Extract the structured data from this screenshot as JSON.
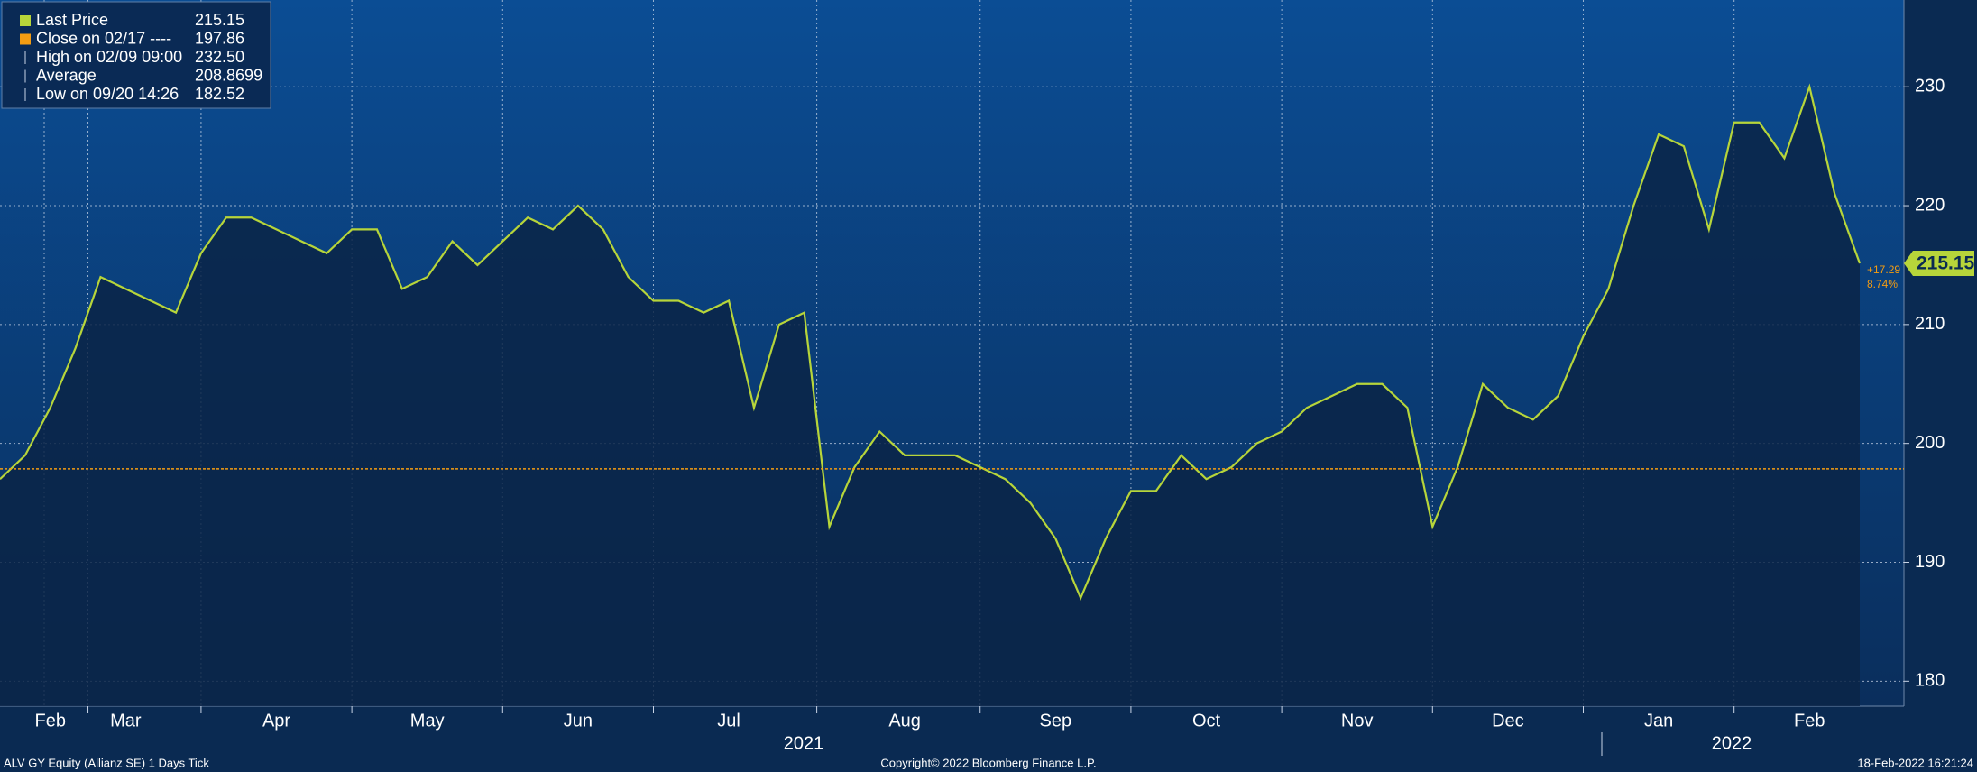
{
  "chart_data": {
    "type": "line",
    "categories": [
      null,
      null,
      "Feb",
      null,
      null,
      "Mar",
      null,
      null,
      null,
      null,
      null,
      "Apr",
      null,
      null,
      null,
      null,
      null,
      "May",
      null,
      null,
      null,
      null,
      null,
      "Jun",
      null,
      null,
      null,
      null,
      null,
      "Jul",
      null,
      null,
      null,
      null,
      null,
      null,
      "Aug",
      null,
      null,
      null,
      null,
      null,
      "Sep",
      null,
      null,
      null,
      null,
      null,
      "Oct",
      null,
      null,
      null,
      null,
      null,
      "Nov",
      null,
      null,
      null,
      null,
      null,
      "Dec",
      null,
      null,
      null,
      null,
      null,
      "Jan",
      null,
      null,
      null,
      null,
      null,
      "Feb",
      null,
      null
    ],
    "series": [
      {
        "name": "Last Price",
        "color": "#b7d53a",
        "values": [
          197,
          199,
          203,
          208,
          214,
          213,
          212,
          211,
          216,
          219,
          219,
          218,
          217,
          216,
          218,
          218,
          213,
          214,
          217,
          215,
          217,
          219,
          218,
          220,
          218,
          214,
          212,
          212,
          211,
          212,
          203,
          210,
          211,
          193,
          198,
          201,
          199,
          199,
          199,
          198,
          197,
          195,
          192,
          187,
          192,
          196,
          196,
          199,
          197,
          198,
          200,
          201,
          203,
          204,
          205,
          205,
          203,
          193,
          198,
          205,
          203,
          202,
          204,
          209,
          213,
          220,
          226,
          225,
          218,
          227,
          227,
          224,
          230,
          221,
          215.15
        ]
      }
    ],
    "legend": [
      {
        "name": "Last Price"
      },
      {
        "name": "Close on 02/17 ----",
        "value": 197.86,
        "color": "#f39c12"
      },
      {
        "name": "High on 02/09 09:00",
        "value": {
          "value": 232.5,
          "label": "232.50"
        }
      },
      {
        "name": "Average",
        "value": 208.8699
      },
      {
        "name": "Low on 09/20 14:26",
        "value": 182.52
      }
    ],
    "change_labels": [
      "+17.29",
      "8.74%"
    ],
    "years": [
      "2021",
      "2022"
    ],
    "ylim": [
      177.9,
      237.3
    ],
    "yticks": [
      180,
      190,
      200,
      210,
      220,
      230
    ],
    "grid": true,
    "footer": {
      "left": "ALV GY Equity (Allianz SE) 1 Days  Tick",
      "center": "Copyright© 2022 Bloomberg Finance L.P.",
      "right": "18-Feb-2022 16:21:24"
    }
  }
}
